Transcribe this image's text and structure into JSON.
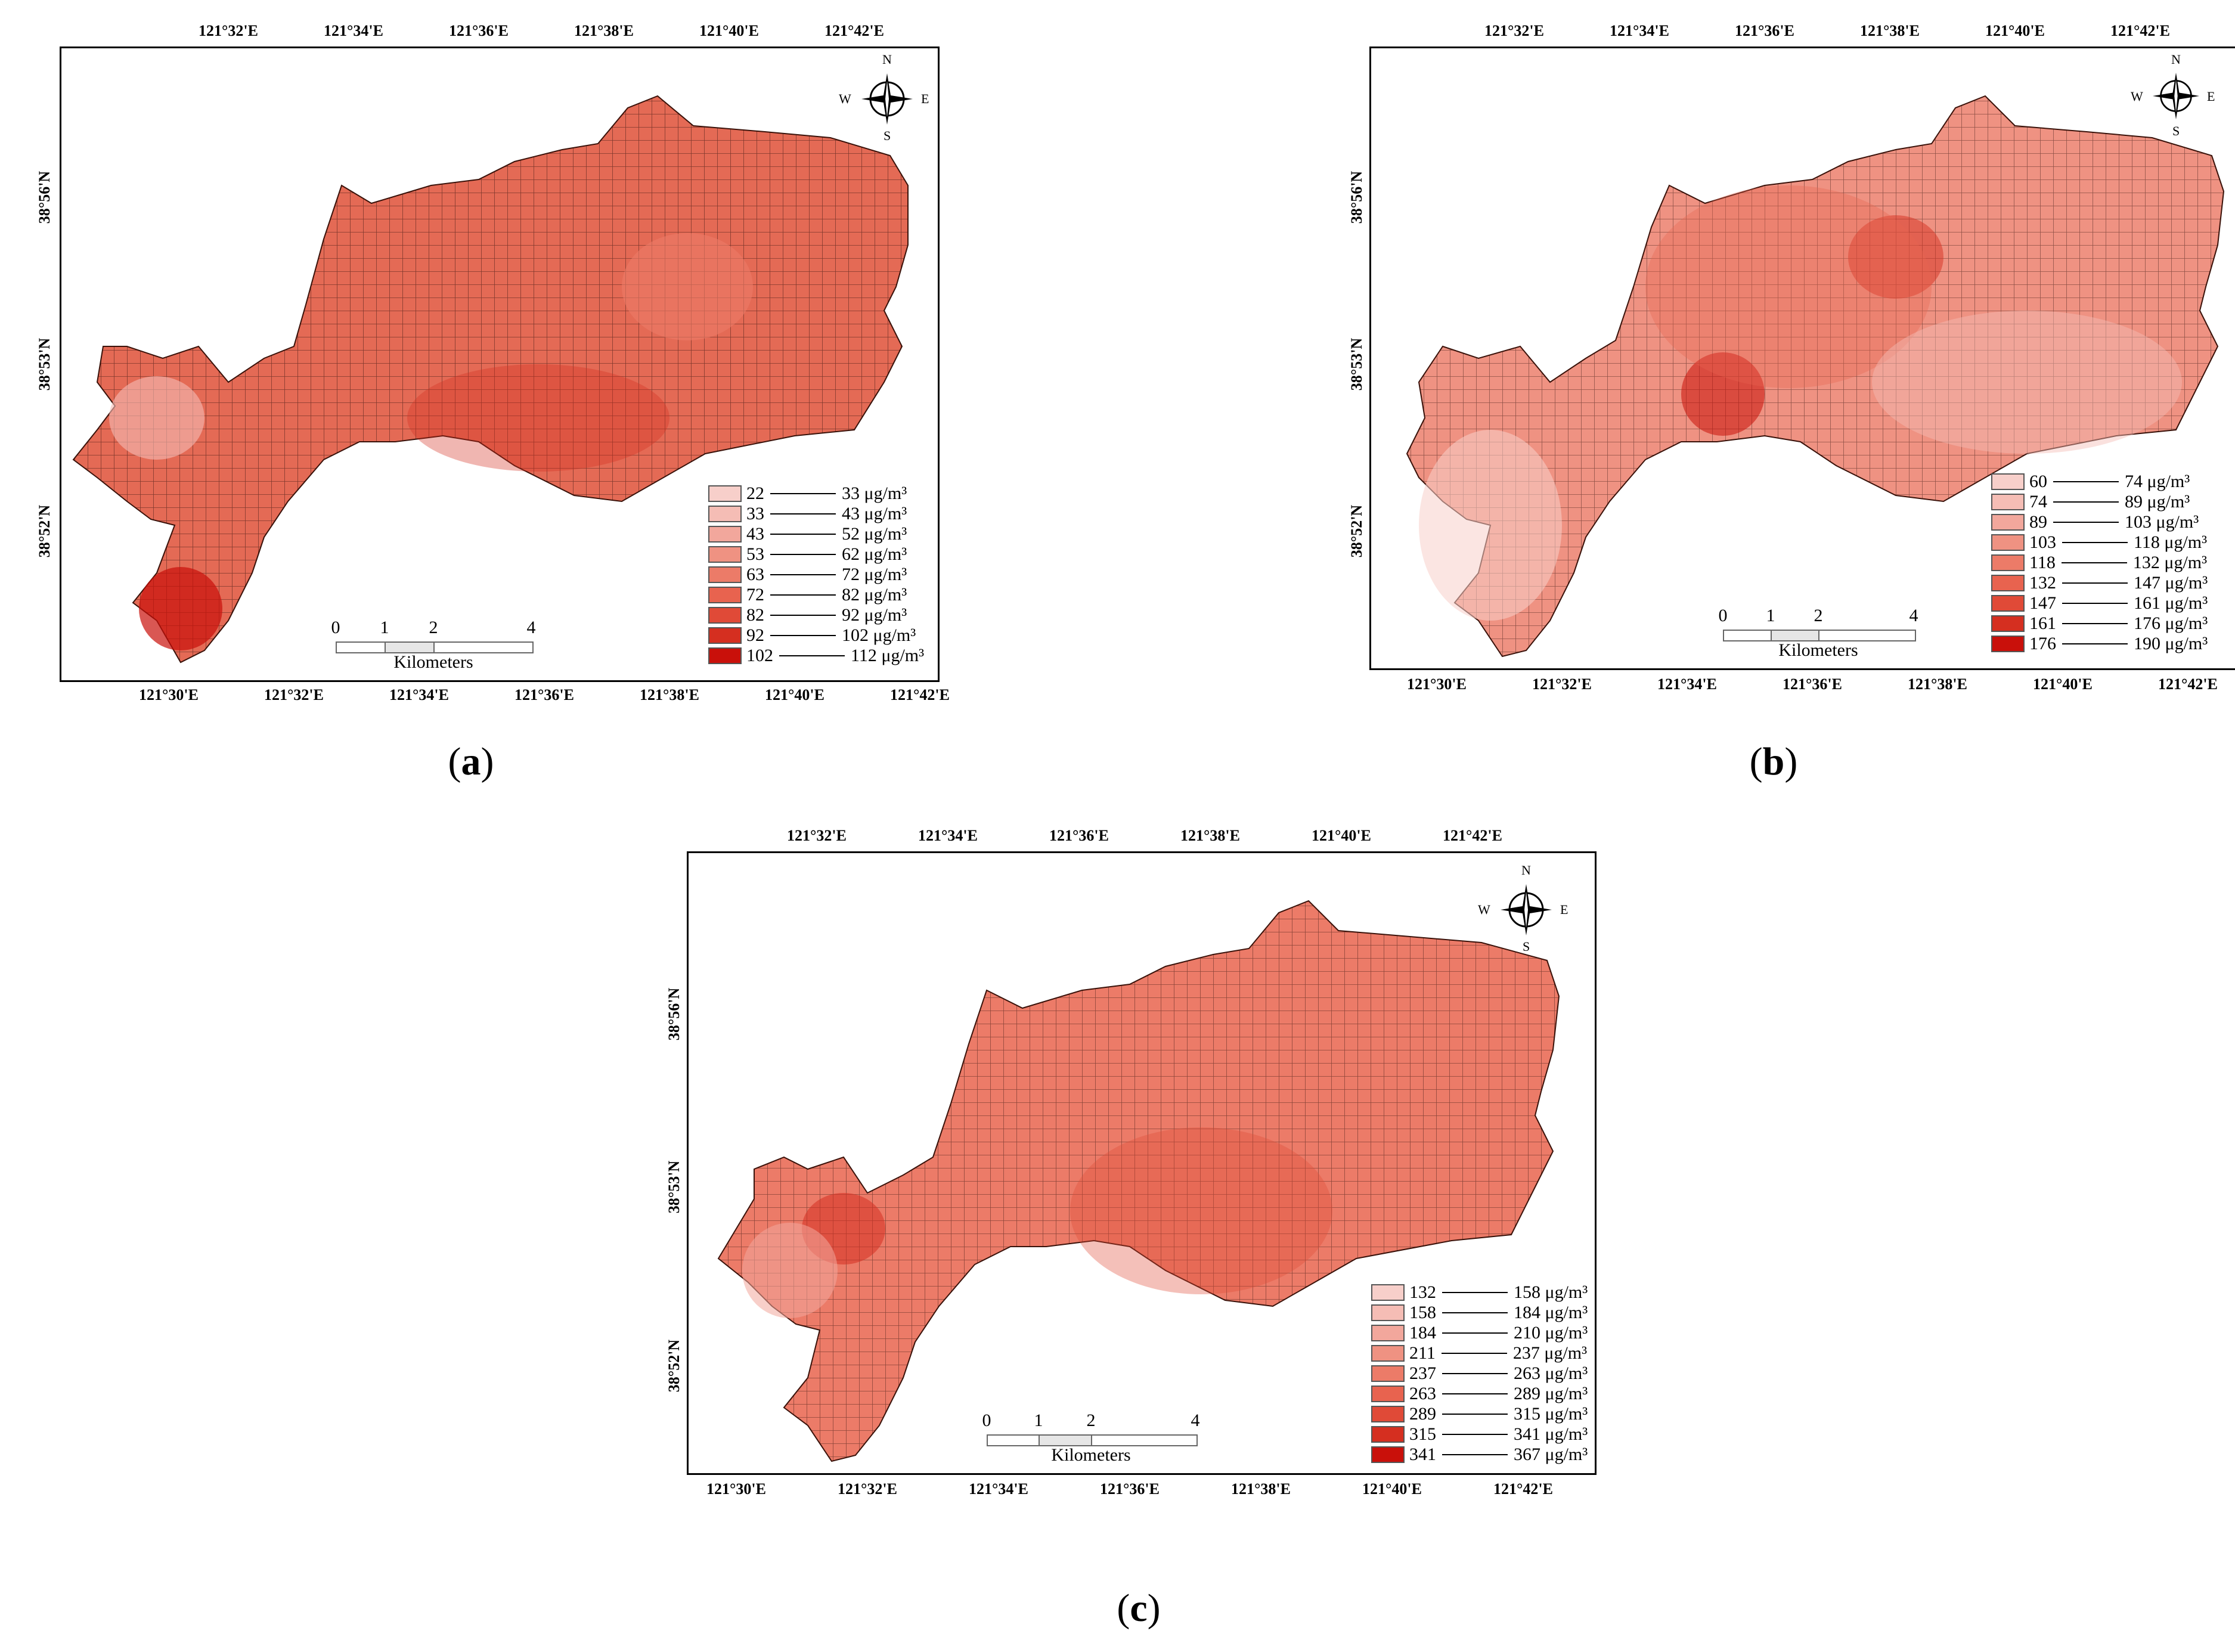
{
  "panels": [
    {
      "id": "a",
      "caption_letter": "a",
      "lon_ticks_top": [
        "121°32'E",
        "121°34'E",
        "121°36'E",
        "121°38'E",
        "121°40'E",
        "121°42'E"
      ],
      "lon_ticks_bottom": [
        "121°30'E",
        "121°32'E",
        "121°34'E",
        "121°36'E",
        "121°38'E",
        "121°40'E",
        "121°42'E"
      ],
      "lat_ticks": [
        "38°56'N",
        "38°53'N",
        "38°52'N"
      ],
      "legend": [
        {
          "from": "22",
          "to": "33 μg/m³",
          "color": "#f7cfca"
        },
        {
          "from": "33",
          "to": "43 μg/m³",
          "color": "#f5bdb5"
        },
        {
          "from": "43",
          "to": "52 μg/m³",
          "color": "#f2a79c"
        },
        {
          "from": "53",
          "to": "62 μg/m³",
          "color": "#ef9282"
        },
        {
          "from": "63",
          "to": "72 μg/m³",
          "color": "#ec7b68"
        },
        {
          "from": "72",
          "to": "82 μg/m³",
          "color": "#e8634f"
        },
        {
          "from": "82",
          "to": "92 μg/m³",
          "color": "#e04a37"
        },
        {
          "from": "92",
          "to": "102 μg/m³",
          "color": "#d52f20"
        },
        {
          "from": "102",
          "to": "112 μg/m³",
          "color": "#c9100a"
        }
      ],
      "scale": {
        "labels": [
          "0",
          "1",
          "2",
          "4"
        ],
        "unit": "Kilometers"
      },
      "compass": {
        "n": "N",
        "s": "S",
        "e": "E",
        "w": "W"
      }
    },
    {
      "id": "b",
      "caption_letter": "b",
      "lon_ticks_top": [
        "121°32'E",
        "121°34'E",
        "121°36'E",
        "121°38'E",
        "121°40'E",
        "121°42'E"
      ],
      "lon_ticks_bottom": [
        "121°30'E",
        "121°32'E",
        "121°34'E",
        "121°36'E",
        "121°38'E",
        "121°40'E",
        "121°42'E"
      ],
      "lat_ticks": [
        "38°56'N",
        "38°53'N",
        "38°52'N"
      ],
      "legend": [
        {
          "from": "60",
          "to": "74 μg/m³",
          "color": "#f7cfca"
        },
        {
          "from": "74",
          "to": "89 μg/m³",
          "color": "#f5bdb5"
        },
        {
          "from": "89",
          "to": "103 μg/m³",
          "color": "#f2a79c"
        },
        {
          "from": "103",
          "to": "118 μg/m³",
          "color": "#ef9282"
        },
        {
          "from": "118",
          "to": "132 μg/m³",
          "color": "#ec7b68"
        },
        {
          "from": "132",
          "to": "147 μg/m³",
          "color": "#e8634f"
        },
        {
          "from": "147",
          "to": "161 μg/m³",
          "color": "#e04a37"
        },
        {
          "from": "161",
          "to": "176 μg/m³",
          "color": "#d52f20"
        },
        {
          "from": "176",
          "to": "190 μg/m³",
          "color": "#c9100a"
        }
      ],
      "scale": {
        "labels": [
          "0",
          "1",
          "2",
          "4"
        ],
        "unit": "Kilometers"
      },
      "compass": {
        "n": "N",
        "s": "S",
        "e": "E",
        "w": "W"
      }
    },
    {
      "id": "c",
      "caption_letter": "c",
      "lon_ticks_top": [
        "121°32'E",
        "121°34'E",
        "121°36'E",
        "121°38'E",
        "121°40'E",
        "121°42'E"
      ],
      "lon_ticks_bottom": [
        "121°30'E",
        "121°32'E",
        "121°34'E",
        "121°36'E",
        "121°38'E",
        "121°40'E",
        "121°42'E"
      ],
      "lat_ticks": [
        "38°56'N",
        "38°53'N",
        "38°52'N"
      ],
      "legend": [
        {
          "from": "132",
          "to": "158 μg/m³",
          "color": "#f7cfca"
        },
        {
          "from": "158",
          "to": "184 μg/m³",
          "color": "#f5bdb5"
        },
        {
          "from": "184",
          "to": "210 μg/m³",
          "color": "#f2a79c"
        },
        {
          "from": "211",
          "to": "237 μg/m³",
          "color": "#ef9282"
        },
        {
          "from": "237",
          "to": "263 μg/m³",
          "color": "#ec7b68"
        },
        {
          "from": "263",
          "to": "289 μg/m³",
          "color": "#e8634f"
        },
        {
          "from": "289",
          "to": "315 μg/m³",
          "color": "#e04a37"
        },
        {
          "from": "315",
          "to": "341 μg/m³",
          "color": "#d52f20"
        },
        {
          "from": "341",
          "to": "367 μg/m³",
          "color": "#c9100a"
        }
      ],
      "scale": {
        "labels": [
          "0",
          "1",
          "2",
          "4"
        ],
        "unit": "Kilometers"
      },
      "compass": {
        "n": "N",
        "s": "S",
        "e": "E",
        "w": "W"
      }
    }
  ]
}
